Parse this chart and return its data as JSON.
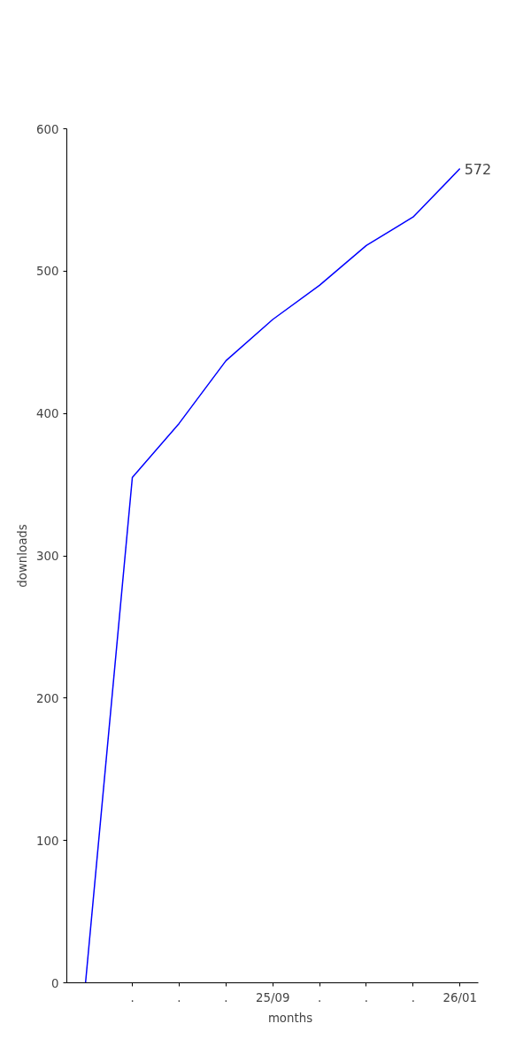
{
  "chart_data": {
    "type": "line",
    "xlabel": "months",
    "ylabel": "downloads",
    "categories": [
      null,
      ".",
      ".",
      ".",
      "25/09",
      ".",
      ".",
      ".",
      "26/01"
    ],
    "series": [
      {
        "color": "#0000ff",
        "values": [
          0,
          355,
          393,
          437,
          466,
          490,
          518,
          538,
          572
        ]
      }
    ],
    "ylim": [
      0,
      600
    ],
    "yticks": [
      0,
      100,
      200,
      300,
      400,
      500,
      600
    ],
    "annotations": [
      {
        "text": "572",
        "x": "26/01",
        "y": 572
      }
    ],
    "grid": false,
    "marker": "none",
    "line_style": "solid"
  }
}
